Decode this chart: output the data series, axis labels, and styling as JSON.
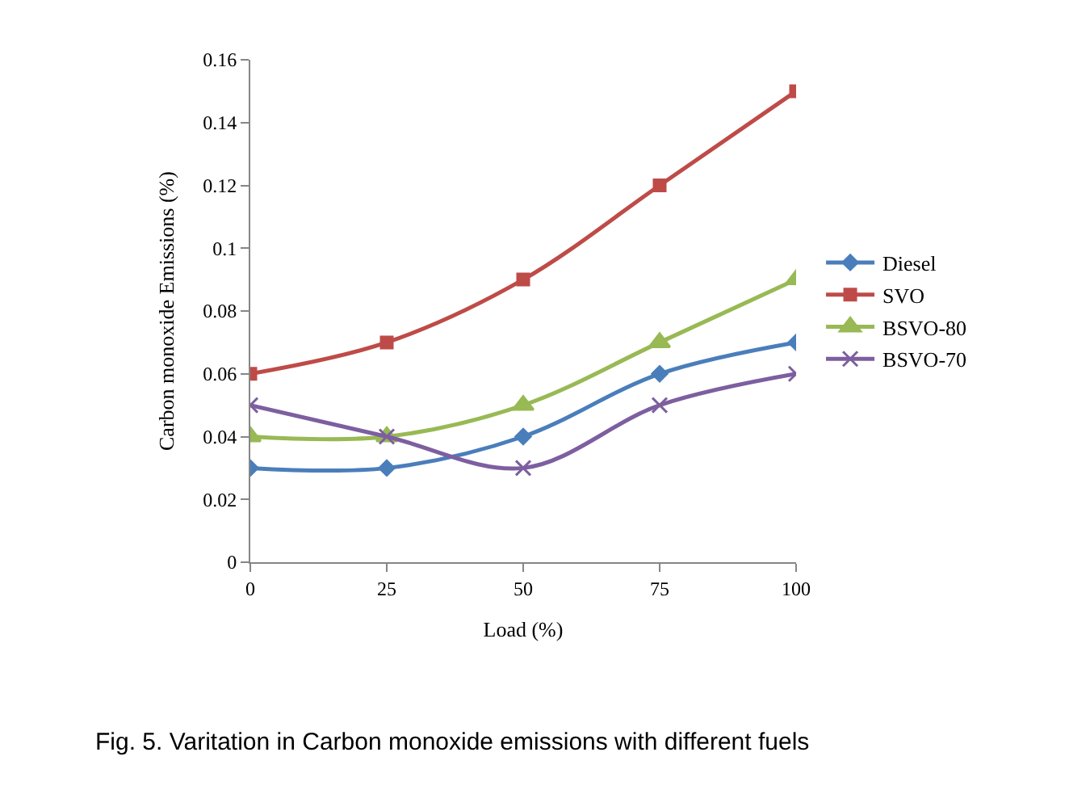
{
  "chart_data": {
    "type": "line",
    "x": [
      0,
      25,
      50,
      75,
      100
    ],
    "xlabel": "Load (%)",
    "ylabel": "Carbon monoxide Emissions (%)",
    "series": [
      {
        "name": "Diesel",
        "color": "#4a7ebb",
        "marker": "diamond",
        "values": [
          0.03,
          0.03,
          0.04,
          0.06,
          0.07
        ]
      },
      {
        "name": "SVO",
        "color": "#be4b48",
        "marker": "square",
        "values": [
          0.06,
          0.07,
          0.09,
          0.12,
          0.15
        ]
      },
      {
        "name": "BSVO-80",
        "color": "#98b954",
        "marker": "triangle",
        "values": [
          0.04,
          0.04,
          0.05,
          0.07,
          0.09
        ]
      },
      {
        "name": "BSVO-70",
        "color": "#7d5fa0",
        "marker": "cross",
        "values": [
          0.05,
          0.04,
          0.03,
          0.05,
          0.06
        ]
      }
    ],
    "xlim": [
      0,
      100
    ],
    "xticks": [
      0,
      25,
      50,
      75,
      100
    ],
    "ylim": [
      0,
      0.16
    ],
    "yticks": [
      0,
      0.02,
      0.04,
      0.06,
      0.08,
      0.1,
      0.12,
      0.14,
      0.16
    ],
    "grid": false,
    "legend": "right",
    "annotations": [
      "Fig. 5. Varitation in Carbon monoxide emissions with different fuels"
    ]
  }
}
